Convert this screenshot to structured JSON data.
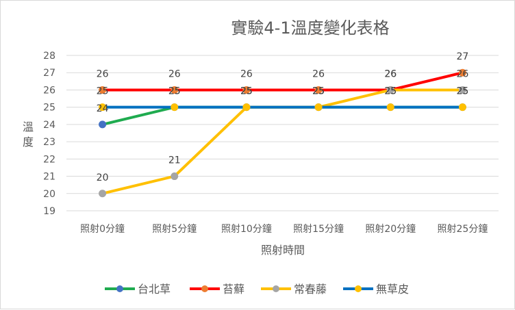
{
  "chart_data": {
    "type": "line",
    "title": "實驗4-1溫度變化表格",
    "xlabel": "照射時間",
    "ylabel": "溫度",
    "categories": [
      "照射0分鐘",
      "照射5分鐘",
      "照射10分鐘",
      "照射15分鐘",
      "照射20分鐘",
      "照射25分鐘"
    ],
    "ylim": [
      19,
      28
    ],
    "yticks": [
      19,
      20,
      21,
      22,
      23,
      24,
      25,
      26,
      27,
      28
    ],
    "grid": true,
    "legend_position": "bottom",
    "series": [
      {
        "name": "台北草",
        "values": [
          24,
          25,
          25,
          25,
          25,
          25
        ],
        "line_color": "#1fab4f",
        "marker_color": "#4472c4"
      },
      {
        "name": "苔蘚",
        "values": [
          26,
          26,
          26,
          26,
          26,
          27
        ],
        "line_color": "#ff0000",
        "marker_color": "#ed7d31"
      },
      {
        "name": "常春藤",
        "values": [
          20,
          21,
          25,
          25,
          26,
          26
        ],
        "line_color": "#ffc000",
        "marker_color": "#a5a5a5"
      },
      {
        "name": "無草皮",
        "values": [
          25,
          25,
          25,
          25,
          25,
          25
        ],
        "line_color": "#0070c0",
        "marker_color": "#ffc000"
      }
    ],
    "data_labels": [
      {
        "series": 0,
        "values": [
          24,
          25,
          25,
          25,
          25,
          25
        ]
      },
      {
        "series": 1,
        "values": [
          26,
          26,
          26,
          26,
          26,
          27
        ]
      },
      {
        "series": 2,
        "values": [
          20,
          21,
          25,
          25,
          26,
          26
        ]
      },
      {
        "series": 3,
        "values": [
          25,
          25,
          25,
          25,
          25,
          25
        ]
      }
    ]
  }
}
